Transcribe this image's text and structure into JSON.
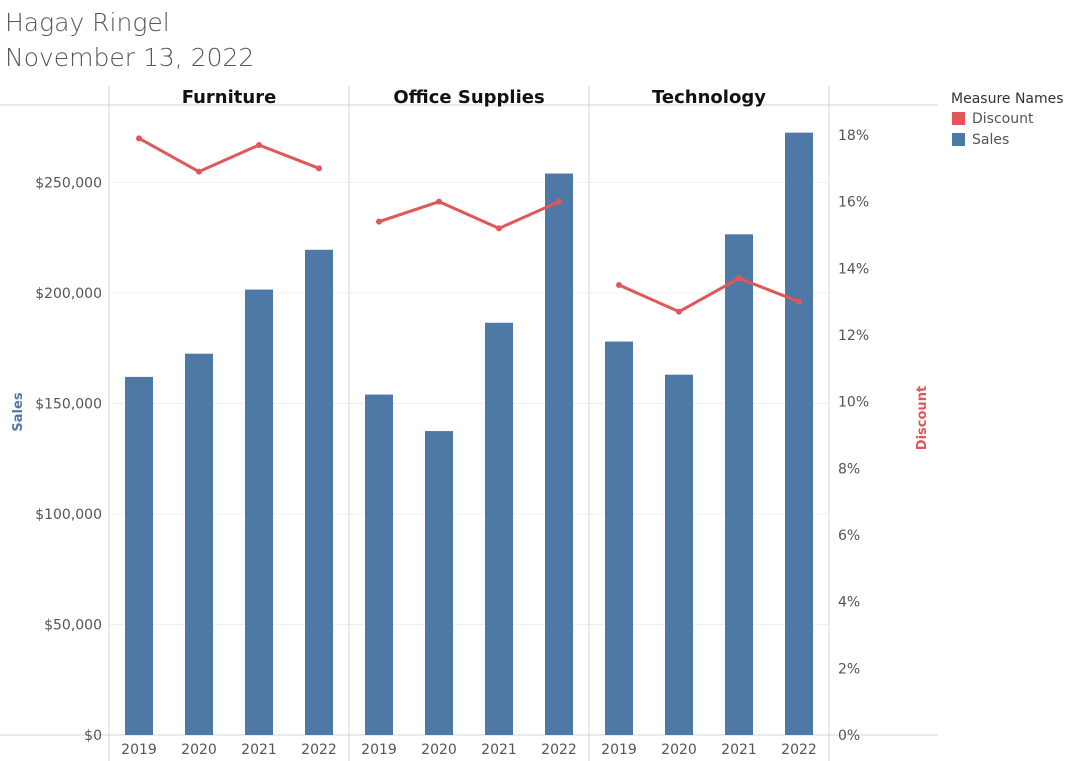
{
  "header": {
    "author": "Hagay Ringel",
    "date": "November 13, 2022"
  },
  "chart_data": {
    "type": "bar",
    "combined_with": "line",
    "panels": [
      {
        "name": "Furniture",
        "categories": [
          "2019",
          "2020",
          "2021",
          "2022"
        ],
        "sales": [
          162000,
          172500,
          201500,
          219500
        ],
        "discount": [
          17.9,
          16.9,
          17.7,
          17.0
        ]
      },
      {
        "name": "Office Supplies",
        "categories": [
          "2019",
          "2020",
          "2021",
          "2022"
        ],
        "sales": [
          154000,
          137500,
          186500,
          254000
        ],
        "discount": [
          15.4,
          16.0,
          15.2,
          16.0
        ]
      },
      {
        "name": "Technology",
        "categories": [
          "2019",
          "2020",
          "2021",
          "2022"
        ],
        "sales": [
          178000,
          163000,
          226500,
          272500
        ],
        "discount": [
          13.5,
          12.7,
          13.7,
          13.0
        ]
      }
    ],
    "y_left": {
      "label": "Sales",
      "ylim": [
        0,
        285000
      ],
      "ticks": [
        {
          "value": 0,
          "label": "$0"
        },
        {
          "value": 50000,
          "label": "$50,000"
        },
        {
          "value": 100000,
          "label": "$100,000"
        },
        {
          "value": 150000,
          "label": "$150,000"
        },
        {
          "value": 200000,
          "label": "$200,000"
        },
        {
          "value": 250000,
          "label": "$250,000"
        }
      ]
    },
    "y_right": {
      "label": "Discount",
      "ylim": [
        0,
        18.9
      ],
      "ticks": [
        {
          "value": 0,
          "label": "0%"
        },
        {
          "value": 2,
          "label": "2%"
        },
        {
          "value": 4,
          "label": "4%"
        },
        {
          "value": 6,
          "label": "6%"
        },
        {
          "value": 8,
          "label": "8%"
        },
        {
          "value": 10,
          "label": "10%"
        },
        {
          "value": 12,
          "label": "12%"
        },
        {
          "value": 14,
          "label": "14%"
        },
        {
          "value": 16,
          "label": "16%"
        },
        {
          "value": 18,
          "label": "18%"
        }
      ]
    },
    "legend": {
      "title": "Measure Names",
      "placement": "top-right",
      "items": [
        {
          "name": "Discount",
          "color": "#e15759"
        },
        {
          "name": "Sales",
          "color": "#4e79a7"
        }
      ]
    },
    "grid": true,
    "colors": {
      "sales": "#4e79a7",
      "discount": "#e15759"
    }
  }
}
